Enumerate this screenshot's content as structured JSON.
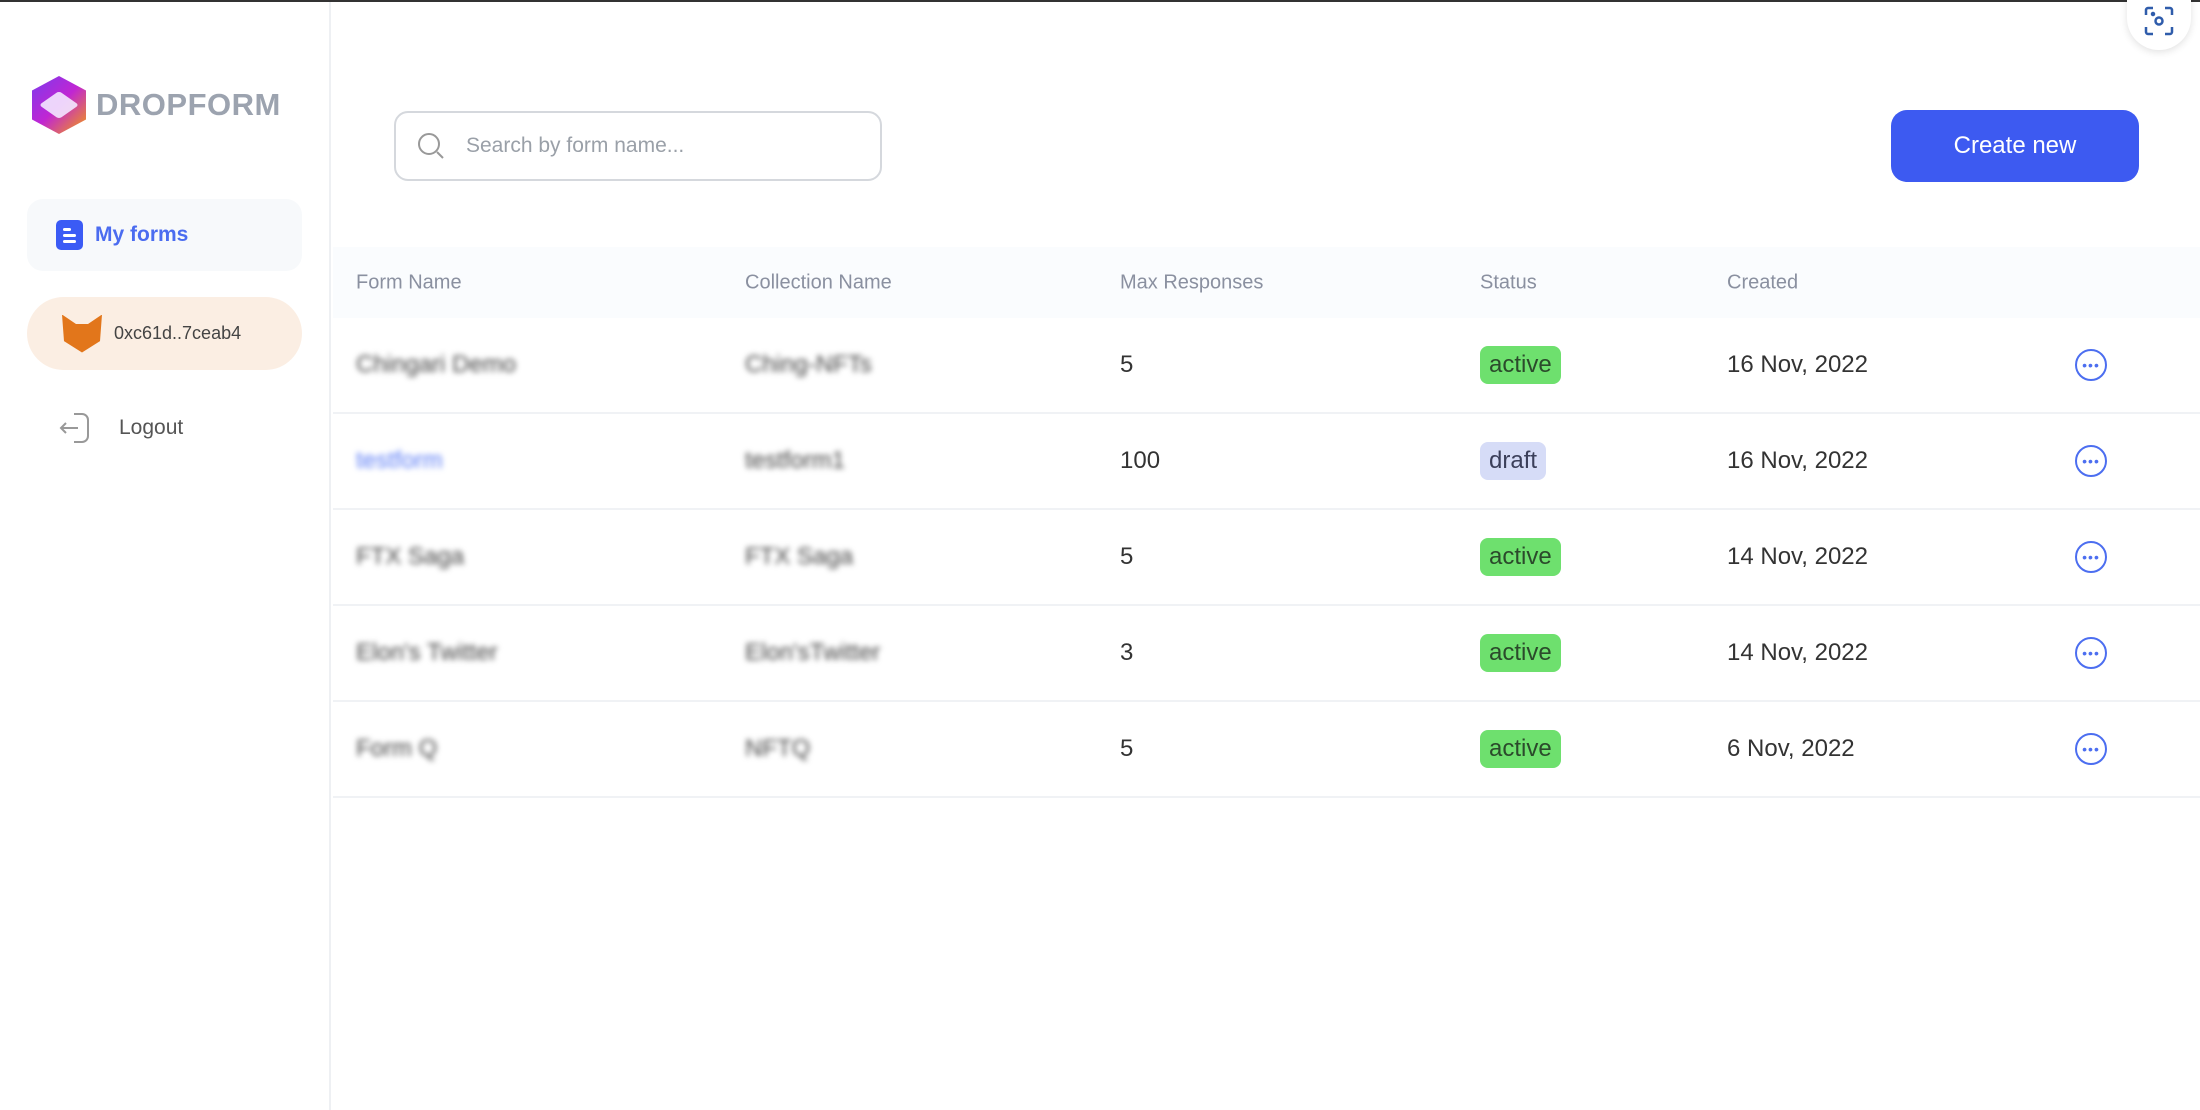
{
  "brand": {
    "name": "DROPFORM"
  },
  "sidebar": {
    "my_forms": "My forms",
    "wallet": "0xc61d..7ceab4",
    "logout": "Logout"
  },
  "search": {
    "placeholder": "Search by form name...",
    "value": ""
  },
  "toolbar": {
    "create_label": "Create new"
  },
  "colors": {
    "accent": "#3d5af1",
    "active": "#6ee06e",
    "draft": "#d6dcf7"
  },
  "table": {
    "headers": [
      "Form Name",
      "Collection Name",
      "Max Responses",
      "Status",
      "Created"
    ],
    "rows": [
      {
        "form": "Chingari Demo",
        "collection": "Ching-NFTs",
        "max": "5",
        "status": "active",
        "created": "16 Nov, 2022"
      },
      {
        "form": "testform",
        "collection": "testform1",
        "max": "100",
        "status": "draft",
        "created": "16 Nov, 2022"
      },
      {
        "form": "FTX Saga",
        "collection": "FTX Saga",
        "max": "5",
        "status": "active",
        "created": "14 Nov, 2022"
      },
      {
        "form": "Elon's Twitter",
        "collection": "Elon'sTwitter",
        "max": "3",
        "status": "active",
        "created": "14 Nov, 2022"
      },
      {
        "form": "Form Q",
        "collection": "NFTQ",
        "max": "5",
        "status": "active",
        "created": "6 Nov, 2022"
      }
    ]
  }
}
